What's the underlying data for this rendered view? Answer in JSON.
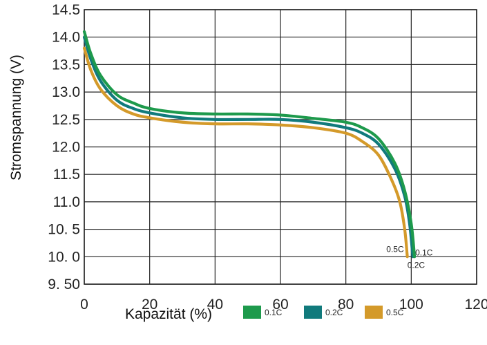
{
  "chart_data": {
    "type": "line",
    "title": "",
    "xlabel": "Kapazität (%)",
    "ylabel": "Stromspannung (V)",
    "xlim": [
      0,
      120
    ],
    "ylim": [
      9.5,
      14.5
    ],
    "grid": true,
    "legend_position": "bottom",
    "x_ticks": [
      {
        "value": 0,
        "label": "0"
      },
      {
        "value": 20,
        "label": "20"
      },
      {
        "value": 40,
        "label": "40"
      },
      {
        "value": 60,
        "label": "60"
      },
      {
        "value": 80,
        "label": "80"
      },
      {
        "value": 100,
        "label": "100"
      },
      {
        "value": 120,
        "label": "120"
      }
    ],
    "y_ticks": [
      {
        "value": 14.5,
        "label": "14.5"
      },
      {
        "value": 14.0,
        "label": "14.0"
      },
      {
        "value": 13.5,
        "label": "13.5"
      },
      {
        "value": 13.0,
        "label": "13.0"
      },
      {
        "value": 12.5,
        "label": "12.5"
      },
      {
        "value": 12.0,
        "label": "12.0"
      },
      {
        "value": 11.5,
        "label": "11.5"
      },
      {
        "value": 11.0,
        "label": "11.0"
      },
      {
        "value": 10.5,
        "label": "10. 5"
      },
      {
        "value": 10.0,
        "label": "10. 0"
      },
      {
        "value": 9.5,
        "label": "9. 50"
      }
    ],
    "series": [
      {
        "name": "0.1C",
        "color": "#1e9a4c",
        "end_label": "0.1C",
        "x": [
          0,
          2,
          5,
          10,
          15,
          20,
          30,
          40,
          50,
          60,
          70,
          80,
          85,
          90,
          95,
          98,
          100,
          101
        ],
        "y": [
          14.1,
          13.7,
          13.3,
          12.95,
          12.8,
          12.7,
          12.62,
          12.6,
          12.6,
          12.58,
          12.52,
          12.45,
          12.35,
          12.15,
          11.7,
          11.2,
          10.6,
          10.0
        ]
      },
      {
        "name": "0.2C",
        "color": "#117a7c",
        "end_label": "0.2C",
        "x": [
          0,
          2,
          5,
          10,
          15,
          20,
          30,
          40,
          50,
          60,
          70,
          80,
          85,
          90,
          95,
          98,
          99.5,
          100.5
        ],
        "y": [
          14.0,
          13.6,
          13.2,
          12.85,
          12.7,
          12.62,
          12.53,
          12.5,
          12.5,
          12.5,
          12.45,
          12.35,
          12.25,
          12.05,
          11.6,
          11.1,
          10.6,
          10.0
        ]
      },
      {
        "name": "0.5C",
        "color": "#d49a2a",
        "end_label": "0.5C",
        "x": [
          0,
          2,
          5,
          10,
          15,
          20,
          30,
          40,
          50,
          60,
          70,
          80,
          85,
          90,
          94,
          96.5,
          98,
          98.8
        ],
        "y": [
          13.8,
          13.4,
          13.05,
          12.75,
          12.6,
          12.53,
          12.45,
          12.42,
          12.42,
          12.4,
          12.35,
          12.25,
          12.1,
          11.85,
          11.4,
          11.0,
          10.5,
          10.0
        ]
      }
    ]
  }
}
